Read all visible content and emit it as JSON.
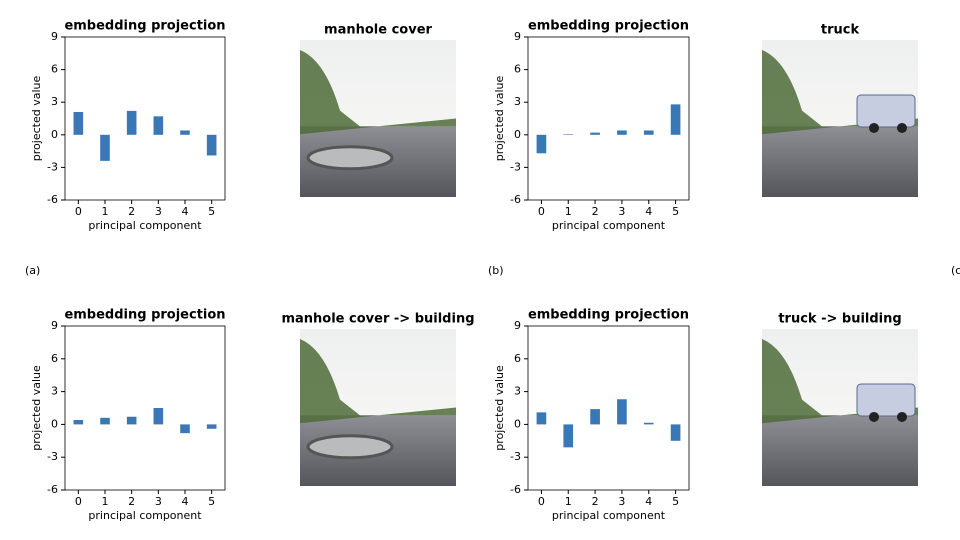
{
  "chart_data": [
    {
      "type": "bar",
      "title": "embedding projection",
      "xlabel": "principal component",
      "ylabel": "projected value",
      "categories": [
        "0",
        "1",
        "2",
        "3",
        "4",
        "5"
      ],
      "values": [
        2.1,
        -2.4,
        2.2,
        1.7,
        0.4,
        -1.9
      ],
      "color": "#3a78b5",
      "ylim": [
        -6,
        9
      ],
      "yticks": [
        -6,
        -3,
        0,
        3,
        6,
        9
      ]
    },
    {
      "type": "bar",
      "title": "embedding projection",
      "xlabel": "principal component",
      "ylabel": "projected value",
      "categories": [
        "0",
        "1",
        "2",
        "3",
        "4",
        "5"
      ],
      "values": [
        -1.7,
        0.05,
        0.2,
        0.4,
        0.4,
        2.8
      ],
      "color": "#3a78b5",
      "ylim": [
        -6,
        9
      ],
      "yticks": [
        -6,
        -3,
        0,
        3,
        6,
        9
      ]
    },
    {
      "type": "bar",
      "title": "embedding projection",
      "xlabel": "principal component",
      "ylabel": "projected value",
      "categories": [
        "0",
        "1",
        "2",
        "3",
        "4",
        "5"
      ],
      "values": [
        0.4,
        0.6,
        0.7,
        1.5,
        -0.8,
        -0.4
      ],
      "color": "#3a78b5",
      "ylim": [
        -6,
        9
      ],
      "yticks": [
        -6,
        -3,
        0,
        3,
        6,
        9
      ]
    },
    {
      "type": "bar",
      "title": "embedding projection",
      "xlabel": "principal component",
      "ylabel": "projected value",
      "categories": [
        "0",
        "1",
        "2",
        "3",
        "4",
        "5"
      ],
      "values": [
        1.1,
        -2.1,
        1.4,
        2.3,
        0.15,
        -1.5
      ],
      "color": "#3a78b5",
      "ylim": [
        -6,
        9
      ],
      "yticks": [
        -6,
        -3,
        0,
        3,
        6,
        9
      ]
    }
  ],
  "images": [
    {
      "title": "manhole cover"
    },
    {
      "title": "truck"
    },
    {
      "title": "manhole cover -> building"
    },
    {
      "title": "truck -> building"
    }
  ],
  "panel_labels": [
    "(a)",
    "(b)",
    "(c"
  ]
}
